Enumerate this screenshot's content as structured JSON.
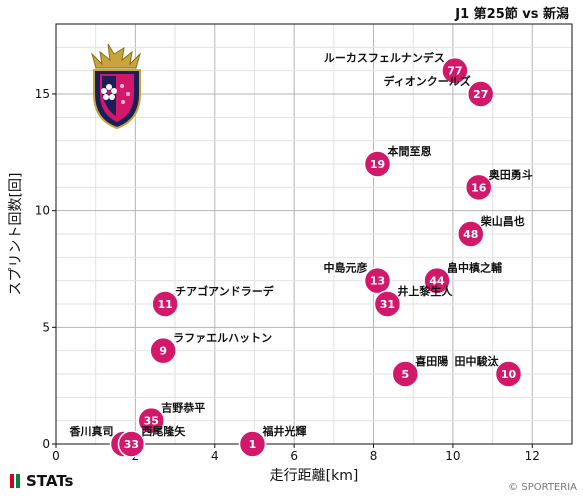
{
  "title": "J1 第25節 vs 新潟",
  "brand": "STATs",
  "copyright": "© SPORTERIA",
  "colors": {
    "marker": "#d2186a",
    "marker_stroke": "#ffffff",
    "grid": "#cccccc"
  },
  "chart_data": {
    "type": "scatter",
    "xlabel": "走行距離[km]",
    "ylabel": "スプリント回数[回]",
    "xlim": [
      0,
      13
    ],
    "ylim": [
      0,
      18
    ],
    "xticks": [
      0,
      2,
      4,
      6,
      8,
      10,
      12
    ],
    "yticks": [
      0,
      5,
      10,
      15
    ],
    "grid": true,
    "points": [
      {
        "num": "77",
        "name": "ルーカスフェルナンデス",
        "x": 10.05,
        "y": 16,
        "label_pos": "left"
      },
      {
        "num": "27",
        "name": "ディオンクールズ",
        "x": 10.7,
        "y": 15,
        "label_pos": "left"
      },
      {
        "num": "19",
        "name": "本間至恩",
        "x": 8.1,
        "y": 12,
        "label_pos": "right"
      },
      {
        "num": "16",
        "name": "奥田勇斗",
        "x": 10.65,
        "y": 11,
        "label_pos": "right"
      },
      {
        "num": "48",
        "name": "柴山昌也",
        "x": 10.45,
        "y": 9,
        "label_pos": "right"
      },
      {
        "num": "13",
        "name": "中島元彦",
        "x": 8.1,
        "y": 7,
        "label_pos": "left"
      },
      {
        "num": "44",
        "name": "畠中槙之輔",
        "x": 9.6,
        "y": 7,
        "label_pos": "right"
      },
      {
        "num": "31",
        "name": "井上黎生人",
        "x": 8.35,
        "y": 6,
        "label_pos": "right"
      },
      {
        "num": "11",
        "name": "チアゴアンドラーデ",
        "x": 2.75,
        "y": 6,
        "label_pos": "right"
      },
      {
        "num": "9",
        "name": "ラファエルハットン",
        "x": 2.7,
        "y": 4,
        "label_pos": "right"
      },
      {
        "num": "5",
        "name": "喜田陽",
        "x": 8.8,
        "y": 3,
        "label_pos": "right"
      },
      {
        "num": "10",
        "name": "田中駿汰",
        "x": 11.4,
        "y": 3,
        "label_pos": "left"
      },
      {
        "num": "35",
        "name": "吉野恭平",
        "x": 2.4,
        "y": 1,
        "label_pos": "right"
      },
      {
        "num": "8",
        "name": "香川真司",
        "x": 1.7,
        "y": 0,
        "label_pos": "left"
      },
      {
        "num": "33",
        "name": "西尾隆矢",
        "x": 1.9,
        "y": 0,
        "label_pos": "right"
      },
      {
        "num": "1",
        "name": "福井光輝",
        "x": 4.95,
        "y": 0,
        "label_pos": "right"
      }
    ]
  }
}
